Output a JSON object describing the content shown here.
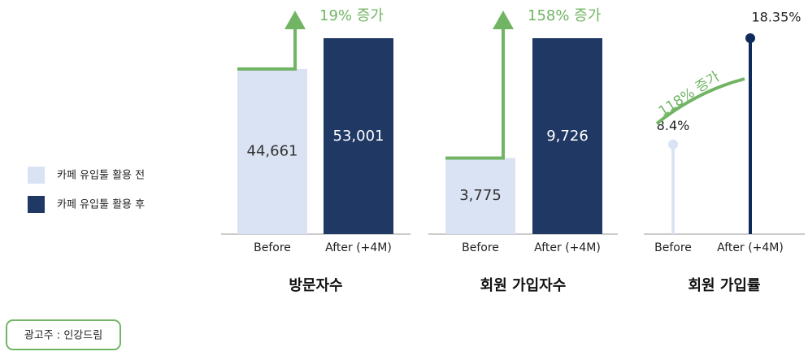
{
  "legend": [
    {
      "name": "카페 유입툴 활용 전",
      "color": "#dae3f3"
    },
    {
      "name": "카페 유입툴 활용 후",
      "color": "#203864"
    }
  ],
  "advertiser": "광고주 : 인강드림",
  "chart_data": [
    {
      "type": "bar",
      "title": "방문자수",
      "categories": [
        "Before",
        "After (+4M)"
      ],
      "values": [
        44661,
        53001
      ],
      "value_labels": [
        "44,661",
        "53,001"
      ],
      "colors": [
        "#dae3f3",
        "#203864"
      ],
      "annotation": "19% 증가"
    },
    {
      "type": "bar",
      "title": "회원 가입자수",
      "categories": [
        "Before",
        "After (+4M)"
      ],
      "values": [
        3775,
        9726
      ],
      "value_labels": [
        "3,775",
        "9,726"
      ],
      "colors": [
        "#dae3f3",
        "#203864"
      ],
      "annotation": "158% 증가"
    },
    {
      "type": "lollipop",
      "title": "회원 가입률",
      "categories": [
        "Before",
        "After (+4M)"
      ],
      "values": [
        8.4,
        18.35
      ],
      "value_labels": [
        "8.4%",
        "18.35%"
      ],
      "colors": [
        "#dae3f3",
        "#0f2a5c"
      ],
      "annotation": "118% 증가"
    }
  ]
}
